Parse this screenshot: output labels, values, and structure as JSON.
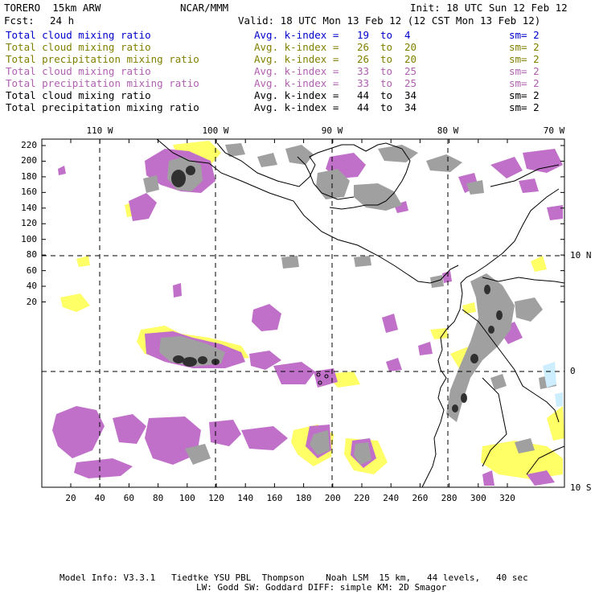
{
  "header": {
    "model": "TORERO  15km ARW",
    "org": "NCAR/MMM",
    "init": "Init: 18 UTC Sun 12 Feb 12",
    "fcst_label": "Fcst:",
    "fcst_value": "24 h",
    "valid": "Valid: 18 UTC Mon 13 Feb 12 (12 CST Mon 13 Feb 12)"
  },
  "legend": [
    {
      "field": "Total cloud mixing ratio",
      "stat": "Avg. k-index =",
      "k1": "19",
      "to": "to",
      "k2": "4",
      "sm": "sm= 2",
      "color": "#0000cc"
    },
    {
      "field": "Total cloud mixing ratio",
      "stat": "Avg. k-index =",
      "k1": "26",
      "to": "to",
      "k2": "20",
      "sm": "sm= 2",
      "color": "#808000"
    },
    {
      "field": "Total precipitation mixing ratio",
      "stat": "Avg. k-index =",
      "k1": "26",
      "to": "to",
      "k2": "20",
      "sm": "sm= 2",
      "color": "#808000"
    },
    {
      "field": "Total cloud mixing ratio",
      "stat": "Avg. k-index =",
      "k1": "33",
      "to": "to",
      "k2": "25",
      "sm": "sm= 2",
      "color": "#b060b0"
    },
    {
      "field": "Total precipitation mixing ratio",
      "stat": "Avg. k-index =",
      "k1": "33",
      "to": "to",
      "k2": "25",
      "sm": "sm= 2",
      "color": "#b060b0"
    },
    {
      "field": "Total cloud mixing ratio",
      "stat": "Avg. k-index =",
      "k1": "44",
      "to": "to",
      "k2": "34",
      "sm": "sm= 2",
      "color": "#000000"
    },
    {
      "field": "Total precipitation mixing ratio",
      "stat": "Avg. k-index =",
      "k1": "44",
      "to": "to",
      "k2": "34",
      "sm": "sm= 2",
      "color": "#000000"
    }
  ],
  "axes": {
    "lon_labels": [
      "110 W",
      "100 W",
      "90 W",
      "80 W",
      "70 W"
    ],
    "lat_labels": [
      "10 N",
      "0",
      "10 S"
    ],
    "y_ticks": [
      "220",
      "200",
      "180",
      "160",
      "140",
      "120",
      "100",
      "80",
      "60",
      "40",
      "20"
    ],
    "x_ticks": [
      "20",
      "40",
      "60",
      "80",
      "100",
      "120",
      "140",
      "160",
      "180",
      "200",
      "220",
      "240",
      "260",
      "280",
      "300",
      "320"
    ]
  },
  "colors": {
    "cloud_low": "#ffff66",
    "cloud_mid": "#c070c8",
    "cloud_high": "#a0a0a0",
    "precip_high": "#303030",
    "ice": "#cceeff",
    "coast": "#000000"
  },
  "footer": {
    "line1": "Model Info: V3.3.1   Tiedtke YSU PBL  Thompson    Noah LSM  15 km,   44 levels,   40 sec",
    "line2": "LW: Godd SW: Goddard DIFF: simple KM: 2D Smagor"
  }
}
